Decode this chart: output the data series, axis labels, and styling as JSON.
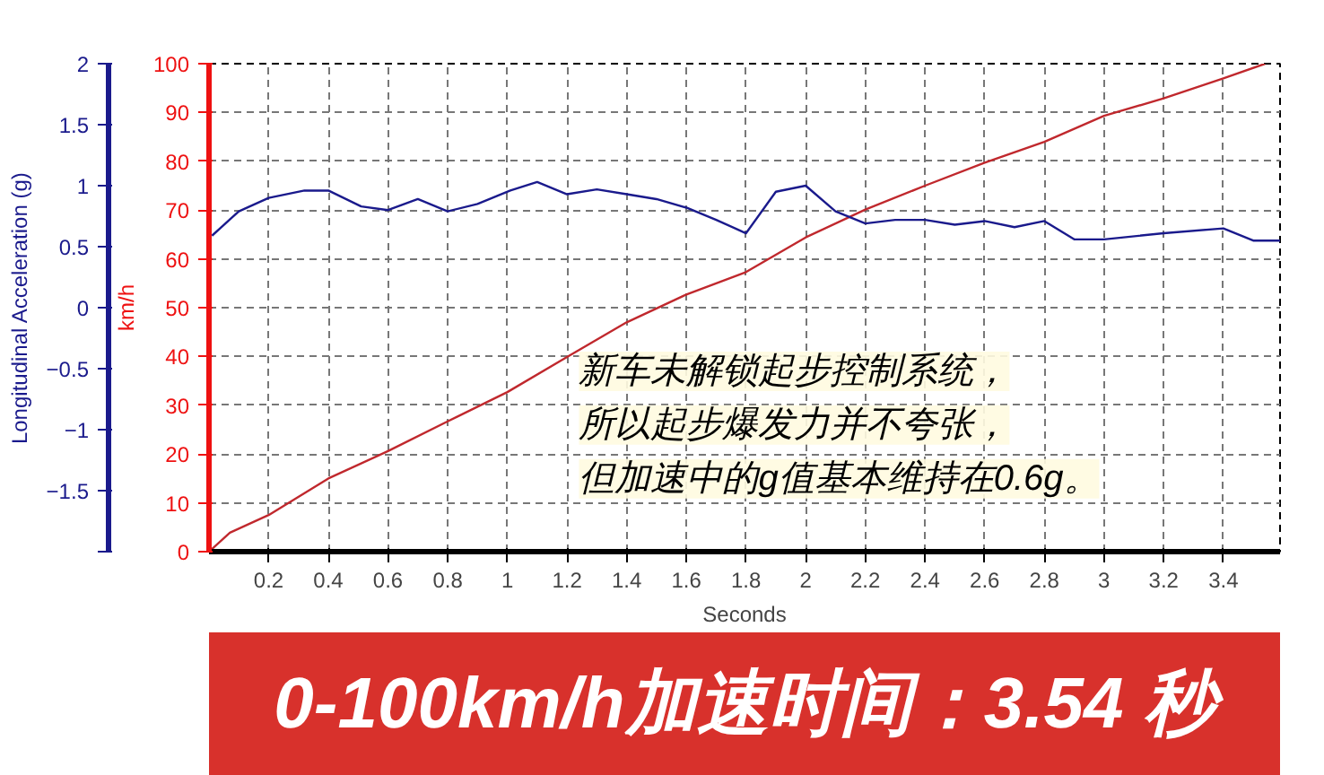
{
  "chart_data": {
    "type": "line",
    "xlabel": "Seconds",
    "ylabel": "km/h",
    "y2label": "Longitudinal Acceleration (g)",
    "xlim": [
      0,
      3.59
    ],
    "xticks": [
      0.2,
      0.4,
      0.6,
      0.8,
      1,
      1.2,
      1.4,
      1.6,
      1.8,
      2,
      2.2,
      2.4,
      2.6,
      2.8,
      3,
      3.2,
      3.4
    ],
    "ylim": [
      0,
      100
    ],
    "yticks": [
      0,
      10,
      20,
      30,
      40,
      50,
      60,
      70,
      80,
      90,
      100
    ],
    "y2lim": [
      -2,
      2
    ],
    "y2ticks": [
      {
        "value": -2,
        "label": null
      },
      -1.5,
      -1,
      -0.5,
      0,
      0.5,
      1,
      1.5,
      2
    ],
    "grid": true,
    "line_style": "solid",
    "marker": "none",
    "series": [
      {
        "color": "#c0282d",
        "x": [
          0,
          0.07,
          0.2,
          0.4,
          0.6,
          0.8,
          1.0,
          1.2,
          1.4,
          1.6,
          1.8,
          2.0,
          2.2,
          2.4,
          2.6,
          2.8,
          3.0,
          3.2,
          3.4,
          3.54
        ],
        "values": [
          0,
          3.9,
          7.5,
          15,
          20.6,
          26.7,
          32.7,
          39.9,
          47,
          52.7,
          57.3,
          64.4,
          70.1,
          75,
          79.7,
          84,
          89.3,
          92.9,
          97,
          100
        ]
      },
      {
        "color": "#1a1a8c",
        "axis": "y2",
        "x": [
          0.01,
          0.1,
          0.2,
          0.32,
          0.4,
          0.51,
          0.6,
          0.7,
          0.8,
          0.9,
          1.01,
          1.1,
          1.2,
          1.3,
          1.4,
          1.5,
          1.6,
          1.7,
          1.8,
          1.9,
          2.0,
          2.1,
          2.2,
          2.3,
          2.4,
          2.5,
          2.6,
          2.7,
          2.8,
          2.9,
          3.0,
          3.2,
          3.4,
          3.5,
          3.59
        ],
        "values": [
          0.59,
          0.79,
          0.9,
          0.96,
          0.96,
          0.83,
          0.8,
          0.89,
          0.79,
          0.85,
          0.96,
          1.03,
          0.93,
          0.97,
          0.93,
          0.89,
          0.82,
          0.72,
          0.61,
          0.95,
          1.0,
          0.79,
          0.69,
          0.72,
          0.72,
          0.68,
          0.71,
          0.66,
          0.71,
          0.56,
          0.56,
          0.61,
          0.65,
          0.55,
          0.55
        ]
      }
    ],
    "annotations": [
      "新车未解锁起步控制系统，",
      "所以起步爆发力并不夸张，",
      "但加速中的g值基本维持在0.6g。",
      "0-100km/h加速时间：3.54 秒"
    ]
  }
}
